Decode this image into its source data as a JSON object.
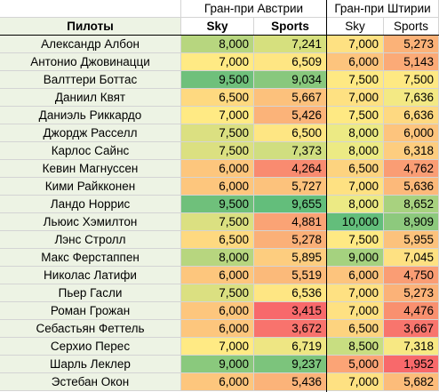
{
  "header": {
    "group_austria": "Гран-при Австрии",
    "group_styria": "Гран-при Штирии",
    "col_pilots": "Пилоты",
    "col_sky": "Sky",
    "col_sports": "Sports"
  },
  "rows": [
    {
      "name": "Александр Албон",
      "a_sky": "8,000",
      "a_sports": "7,241",
      "s_sky": "7,000",
      "s_sports": "5,273",
      "a_sky_color": "#b7d67f",
      "a_sports_color": "#d6e07e",
      "s_sky_color": "#fee182",
      "s_sports_color": "#fbb278"
    },
    {
      "name": "Антонио Джовинацци",
      "a_sky": "7,000",
      "a_sports": "6,509",
      "s_sky": "6,000",
      "s_sports": "5,143",
      "a_sky_color": "#ffea84",
      "a_sports_color": "#fee683",
      "s_sky_color": "#fdc47d",
      "s_sports_color": "#fbaa77"
    },
    {
      "name": "Валттери Боттас",
      "a_sky": "9,500",
      "a_sports": "9,034",
      "s_sky": "7,500",
      "s_sports": "7,500",
      "a_sky_color": "#6fc07b",
      "a_sports_color": "#88c87d",
      "s_sky_color": "#fee983",
      "s_sports_color": "#fee983"
    },
    {
      "name": "Даниил Квят",
      "a_sky": "6,500",
      "a_sports": "5,667",
      "s_sky": "7,000",
      "s_sports": "7,636",
      "a_sky_color": "#fed980",
      "a_sports_color": "#fcc17c",
      "s_sky_color": "#fee182",
      "s_sports_color": "#f3e984"
    },
    {
      "name": "Даниэль Риккардо",
      "a_sky": "7,000",
      "a_sports": "5,426",
      "s_sky": "7,500",
      "s_sports": "6,636",
      "a_sky_color": "#ffea84",
      "a_sports_color": "#fbb379",
      "s_sky_color": "#fee983",
      "s_sports_color": "#fed981"
    },
    {
      "name": "Джордж Расселл",
      "a_sky": "7,500",
      "a_sports": "6,500",
      "s_sky": "8,000",
      "s_sports": "6,000",
      "a_sky_color": "#dbe081",
      "a_sports_color": "#fee683",
      "s_sky_color": "#ecea84",
      "s_sports_color": "#fdc47d"
    },
    {
      "name": "Карлос Сайнс",
      "a_sky": "7,500",
      "a_sports": "7,373",
      "s_sky": "8,000",
      "s_sports": "6,318",
      "a_sky_color": "#dbe081",
      "a_sports_color": "#d0de80",
      "s_sky_color": "#ecea84",
      "s_sports_color": "#fdcd7f"
    },
    {
      "name": "Кевин Магнуссен",
      "a_sky": "6,000",
      "a_sports": "4,264",
      "s_sky": "6,500",
      "s_sports": "4,762",
      "a_sky_color": "#fdc67d",
      "a_sports_color": "#f98b70",
      "s_sky_color": "#fdd37f",
      "s_sports_color": "#fa9d74"
    },
    {
      "name": "Кими Райкконен",
      "a_sky": "6,000",
      "a_sports": "5,727",
      "s_sky": "7,000",
      "s_sports": "5,636",
      "a_sky_color": "#fdc67d",
      "a_sports_color": "#fcc27c",
      "s_sky_color": "#fee182",
      "s_sports_color": "#fcb97a"
    },
    {
      "name": "Ландо Норрис",
      "a_sky": "9,500",
      "a_sports": "9,655",
      "s_sky": "8,000",
      "s_sports": "8,652",
      "a_sky_color": "#6fc07b",
      "a_sports_color": "#63be7b",
      "s_sky_color": "#ecea84",
      "s_sports_color": "#a8d27f"
    },
    {
      "name": "Льюис Хэмилтон",
      "a_sky": "7,500",
      "a_sports": "4,881",
      "s_sky": "10,000",
      "s_sports": "8,909",
      "a_sky_color": "#dbe081",
      "a_sports_color": "#faa375",
      "s_sky_color": "#63be7b",
      "s_sports_color": "#8dc97d"
    },
    {
      "name": "Лэнс Стролл",
      "a_sky": "6,500",
      "a_sports": "5,278",
      "s_sky": "7,500",
      "s_sports": "5,955",
      "a_sky_color": "#fed980",
      "a_sports_color": "#fbb078",
      "s_sky_color": "#fee983",
      "s_sports_color": "#fcc27c"
    },
    {
      "name": "Макс Ферстаппен",
      "a_sky": "8,000",
      "a_sports": "5,895",
      "s_sky": "9,000",
      "s_sports": "7,045",
      "a_sky_color": "#b7d67f",
      "a_sports_color": "#fdcd7f",
      "s_sky_color": "#a5d27f",
      "s_sports_color": "#fee182"
    },
    {
      "name": "Николас Латифи",
      "a_sky": "6,000",
      "a_sports": "5,519",
      "s_sky": "6,000",
      "s_sports": "4,750",
      "a_sky_color": "#fdc67d",
      "a_sports_color": "#fbba7a",
      "s_sky_color": "#fdc47d",
      "s_sports_color": "#fa9d74"
    },
    {
      "name": "Пьер Гасли",
      "a_sky": "7,500",
      "a_sports": "6,536",
      "s_sky": "7,000",
      "s_sports": "5,273",
      "a_sky_color": "#dbe081",
      "a_sports_color": "#fee683",
      "s_sky_color": "#fee182",
      "s_sports_color": "#fbb278"
    },
    {
      "name": "Роман Грожан",
      "a_sky": "6,000",
      "a_sports": "3,415",
      "s_sky": "7,000",
      "s_sports": "4,476",
      "a_sky_color": "#fdc67d",
      "a_sports_color": "#f8696b",
      "s_sky_color": "#fee182",
      "s_sports_color": "#f9906f"
    },
    {
      "name": "Себастьян Феттель",
      "a_sky": "6,000",
      "a_sports": "3,672",
      "s_sky": "6,500",
      "s_sports": "3,667",
      "a_sky_color": "#fdc67d",
      "a_sports_color": "#f8736d",
      "s_sky_color": "#fdd37f",
      "s_sports_color": "#f8756d"
    },
    {
      "name": "Серхио Перес",
      "a_sky": "7,000",
      "a_sports": "6,719",
      "s_sky": "8,500",
      "s_sports": "7,318",
      "a_sky_color": "#ffea84",
      "a_sports_color": "#eee683",
      "s_sky_color": "#c8de81",
      "s_sports_color": "#f7e883"
    },
    {
      "name": "Шарль Леклер",
      "a_sky": "9,000",
      "a_sports": "9,237",
      "s_sky": "5,000",
      "s_sports": "1,952",
      "a_sky_color": "#8ac97d",
      "a_sports_color": "#7cc47c",
      "s_sky_color": "#fba476",
      "s_sports_color": "#f8696b"
    },
    {
      "name": "Эстебан Окон",
      "a_sky": "6,000",
      "a_sports": "5,436",
      "s_sky": "7,000",
      "s_sports": "5,682",
      "a_sky_color": "#fdc67d",
      "a_sports_color": "#fbb379",
      "s_sky_color": "#fee182",
      "s_sports_color": "#fcbc7a"
    }
  ]
}
